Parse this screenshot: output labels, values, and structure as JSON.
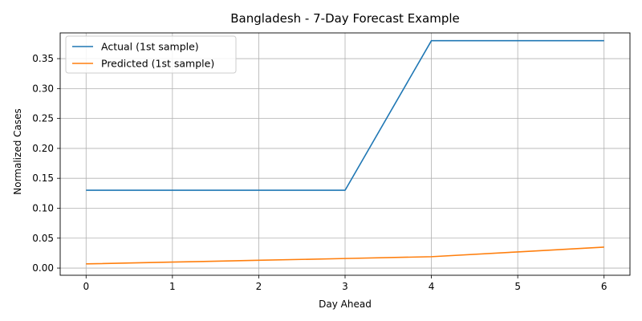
{
  "chart_data": {
    "type": "line",
    "title": "Bangladesh - 7-Day Forecast Example",
    "xlabel": "Day Ahead",
    "ylabel": "Normalized Cases",
    "x": [
      0,
      1,
      2,
      3,
      4,
      5,
      6
    ],
    "xlim": [
      -0.3,
      6.3
    ],
    "ylim": [
      -0.012,
      0.393
    ],
    "xticks": [
      0,
      1,
      2,
      3,
      4,
      5,
      6
    ],
    "xtick_labels": [
      "0",
      "1",
      "2",
      "3",
      "4",
      "5",
      "6"
    ],
    "yticks": [
      0.0,
      0.05,
      0.1,
      0.15,
      0.2,
      0.25,
      0.3,
      0.35
    ],
    "ytick_labels": [
      "0.00",
      "0.05",
      "0.10",
      "0.15",
      "0.20",
      "0.25",
      "0.30",
      "0.35"
    ],
    "grid": true,
    "legend_position": "top-left",
    "series": [
      {
        "name": "Actual (1st sample)",
        "color": "#1f77b4",
        "values": [
          0.13,
          0.13,
          0.13,
          0.13,
          0.38,
          0.38,
          0.38
        ]
      },
      {
        "name": "Predicted (1st sample)",
        "color": "#ff7f0e",
        "values": [
          0.007,
          0.01,
          0.013,
          0.016,
          0.019,
          0.027,
          0.035
        ]
      }
    ]
  }
}
